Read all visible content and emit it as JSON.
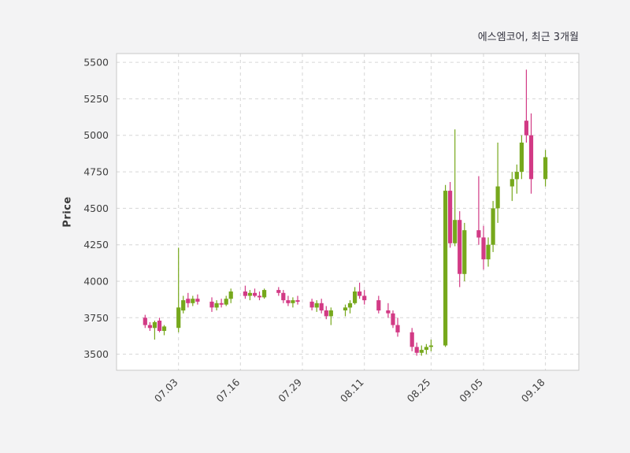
{
  "figure": {
    "title": "에스엠코어, 최근 3개월",
    "ylabel": "Price"
  },
  "chart_data": {
    "type": "candlestick",
    "title": "에스엠코어, 최근 3개월",
    "subtitle": "",
    "xlabel": "",
    "ylabel": "Price",
    "ylim": [
      3390,
      5560
    ],
    "y_ticks": [
      3500,
      3750,
      4000,
      4250,
      4500,
      4750,
      5000,
      5250,
      5500
    ],
    "x_tick_labels": [
      "07.03",
      "07.16",
      "07.29",
      "08.11",
      "08.25",
      "09.05",
      "09.18"
    ],
    "grid": true,
    "legend": false,
    "colors": {
      "up": "#76a81c",
      "down": "#d23a85",
      "grid": "#d6d6d6",
      "plot_border": "#c8c8c8",
      "plot_bg": "#ffffff",
      "figure_bg": "#f3f3f4",
      "text": "#3f3f3f",
      "title_text": "#32323e"
    },
    "candles_columns": [
      "date",
      "open",
      "high",
      "low",
      "close"
    ],
    "candles": [
      [
        "06.26",
        3750,
        3770,
        3680,
        3700
      ],
      [
        "06.27",
        3700,
        3720,
        3660,
        3680
      ],
      [
        "06.28",
        3680,
        3730,
        3600,
        3720
      ],
      [
        "06.29",
        3730,
        3750,
        3650,
        3660
      ],
      [
        "06.30",
        3660,
        3700,
        3630,
        3690
      ],
      [
        "07.03",
        3680,
        4230,
        3650,
        3820
      ],
      [
        "07.04",
        3800,
        3900,
        3780,
        3870
      ],
      [
        "07.05",
        3880,
        3920,
        3820,
        3850
      ],
      [
        "07.06",
        3850,
        3900,
        3830,
        3880
      ],
      [
        "07.07",
        3880,
        3910,
        3840,
        3860
      ],
      [
        "07.10",
        3860,
        3890,
        3790,
        3820
      ],
      [
        "07.11",
        3820,
        3870,
        3800,
        3850
      ],
      [
        "07.12",
        3850,
        3880,
        3820,
        3840
      ],
      [
        "07.13",
        3840,
        3900,
        3830,
        3880
      ],
      [
        "07.14",
        3880,
        3950,
        3850,
        3930
      ],
      [
        "07.17",
        3930,
        3970,
        3880,
        3900
      ],
      [
        "07.18",
        3900,
        3940,
        3870,
        3920
      ],
      [
        "07.19",
        3920,
        3950,
        3890,
        3900
      ],
      [
        "07.20",
        3900,
        3930,
        3870,
        3890
      ],
      [
        "07.21",
        3890,
        3950,
        3880,
        3940
      ],
      [
        "07.24",
        3940,
        3960,
        3900,
        3920
      ],
      [
        "07.25",
        3920,
        3940,
        3850,
        3870
      ],
      [
        "07.26",
        3870,
        3900,
        3830,
        3850
      ],
      [
        "07.27",
        3850,
        3890,
        3820,
        3870
      ],
      [
        "07.28",
        3870,
        3900,
        3840,
        3860
      ],
      [
        "07.31",
        3860,
        3880,
        3800,
        3820
      ],
      [
        "08.01",
        3820,
        3870,
        3790,
        3850
      ],
      [
        "08.02",
        3850,
        3880,
        3780,
        3800
      ],
      [
        "08.03",
        3800,
        3830,
        3740,
        3760
      ],
      [
        "08.04",
        3760,
        3820,
        3700,
        3800
      ],
      [
        "08.07",
        3800,
        3840,
        3760,
        3820
      ],
      [
        "08.08",
        3820,
        3870,
        3780,
        3850
      ],
      [
        "08.09",
        3850,
        3960,
        3840,
        3930
      ],
      [
        "08.10",
        3930,
        3990,
        3880,
        3900
      ],
      [
        "08.11",
        3900,
        3940,
        3840,
        3870
      ],
      [
        "08.14",
        3870,
        3900,
        3780,
        3800
      ],
      [
        "08.16",
        3800,
        3850,
        3750,
        3780
      ],
      [
        "08.17",
        3780,
        3800,
        3680,
        3700
      ],
      [
        "08.18",
        3700,
        3750,
        3620,
        3650
      ],
      [
        "08.21",
        3650,
        3680,
        3520,
        3550
      ],
      [
        "08.22",
        3550,
        3580,
        3490,
        3510
      ],
      [
        "08.23",
        3510,
        3560,
        3490,
        3530
      ],
      [
        "08.24",
        3530,
        3570,
        3500,
        3550
      ],
      [
        "08.25",
        3550,
        3600,
        3520,
        3560
      ],
      [
        "08.28",
        3560,
        4660,
        3550,
        4620
      ],
      [
        "08.29",
        4620,
        4680,
        4230,
        4260
      ],
      [
        "08.30",
        4260,
        5040,
        4240,
        4420
      ],
      [
        "08.31",
        4420,
        4480,
        3960,
        4050
      ],
      [
        "09.01",
        4050,
        4400,
        4000,
        4350
      ],
      [
        "09.04",
        4350,
        4720,
        4250,
        4300
      ],
      [
        "09.05",
        4300,
        4380,
        4080,
        4150
      ],
      [
        "09.06",
        4150,
        4300,
        4100,
        4250
      ],
      [
        "09.07",
        4250,
        4550,
        4200,
        4500
      ],
      [
        "09.08",
        4500,
        4950,
        4400,
        4650
      ],
      [
        "09.11",
        4650,
        4750,
        4550,
        4700
      ],
      [
        "09.12",
        4700,
        4800,
        4600,
        4750
      ],
      [
        "09.13",
        4750,
        5000,
        4700,
        4950
      ],
      [
        "09.14",
        5100,
        5450,
        4950,
        5000
      ],
      [
        "09.15",
        5000,
        5150,
        4600,
        4700
      ],
      [
        "09.18",
        4700,
        4900,
        4650,
        4850
      ]
    ]
  }
}
